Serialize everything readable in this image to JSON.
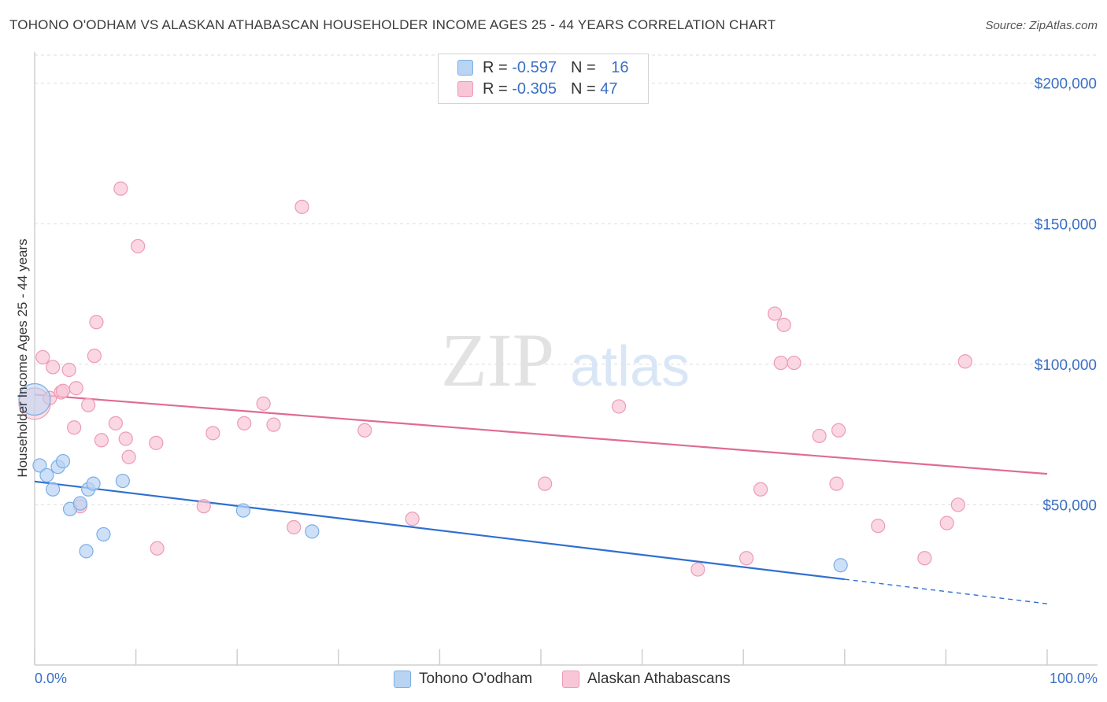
{
  "title": "TOHONO O'ODHAM VS ALASKAN ATHABASCAN HOUSEHOLDER INCOME AGES 25 - 44 YEARS CORRELATION CHART",
  "source": "Source: ZipAtlas.com",
  "watermark": {
    "zip": "ZIP",
    "atlas": "atlas"
  },
  "legend": {
    "rows": [
      {
        "r_label": "R = ",
        "r_value": "-0.597",
        "n_label": "N = ",
        "n_value": "16"
      },
      {
        "r_label": "R = ",
        "r_value": "-0.305",
        "n_label": "N = ",
        "n_value": "47"
      }
    ]
  },
  "colors": {
    "blue_fill": "#b9d3f3",
    "blue_stroke": "#7aaee6",
    "blue_line": "#2f6fd0",
    "pink_fill": "#f8c6d6",
    "pink_stroke": "#ec9bb6",
    "pink_line": "#e06b95",
    "axis_text": "#3a6fc4",
    "grid": "#dedede"
  },
  "chart_data": {
    "type": "scatter",
    "title": "TOHONO O'ODHAM VS ALASKAN ATHABASCAN HOUSEHOLDER INCOME AGES 25 - 44 YEARS CORRELATION CHART",
    "xlabel": "",
    "ylabel": "Householder Income Ages 25 - 44 years",
    "xlim": [
      0,
      100
    ],
    "ylim": [
      0,
      210000
    ],
    "x_tick_labels": [
      "0.0%",
      "100.0%"
    ],
    "y_ticks": [
      50000,
      100000,
      150000,
      200000
    ],
    "y_tick_labels": [
      "$50,000",
      "$100,000",
      "$150,000",
      "$200,000"
    ],
    "legend_position": "bottom",
    "series": [
      {
        "name": "Tohono O'odham",
        "color": "#b9d3f3",
        "points": [
          {
            "x": 0.0,
            "y": 87500,
            "big": true
          },
          {
            "x": 0.5,
            "y": 64000
          },
          {
            "x": 1.2,
            "y": 60500
          },
          {
            "x": 1.8,
            "y": 55500
          },
          {
            "x": 2.3,
            "y": 63500
          },
          {
            "x": 2.8,
            "y": 65500
          },
          {
            "x": 3.5,
            "y": 48500
          },
          {
            "x": 4.5,
            "y": 50500
          },
          {
            "x": 5.1,
            "y": 33500
          },
          {
            "x": 5.3,
            "y": 55500
          },
          {
            "x": 5.8,
            "y": 57500
          },
          {
            "x": 6.8,
            "y": 39500
          },
          {
            "x": 8.7,
            "y": 58500
          },
          {
            "x": 20.6,
            "y": 48000
          },
          {
            "x": 27.4,
            "y": 40500
          },
          {
            "x": 79.6,
            "y": 28500
          }
        ],
        "trend": {
          "x0": 0,
          "y0": 58300,
          "x1": 80,
          "y1": 23500,
          "dash_to_x": 100,
          "dash_to_y": 14800
        }
      },
      {
        "name": "Alaskan Athabascans",
        "color": "#f8c6d6",
        "points": [
          {
            "x": 0.0,
            "y": 86000,
            "big": true
          },
          {
            "x": 0.8,
            "y": 102500
          },
          {
            "x": 1.5,
            "y": 88000
          },
          {
            "x": 1.8,
            "y": 99000
          },
          {
            "x": 2.6,
            "y": 90000
          },
          {
            "x": 2.8,
            "y": 90500
          },
          {
            "x": 3.4,
            "y": 98000
          },
          {
            "x": 3.9,
            "y": 77500
          },
          {
            "x": 4.1,
            "y": 91500
          },
          {
            "x": 4.5,
            "y": 49500
          },
          {
            "x": 5.3,
            "y": 85500
          },
          {
            "x": 5.9,
            "y": 103000
          },
          {
            "x": 6.1,
            "y": 115000
          },
          {
            "x": 6.6,
            "y": 73000
          },
          {
            "x": 8.0,
            "y": 79000
          },
          {
            "x": 8.5,
            "y": 162500
          },
          {
            "x": 9.0,
            "y": 73500
          },
          {
            "x": 9.3,
            "y": 67000
          },
          {
            "x": 10.2,
            "y": 142000
          },
          {
            "x": 12.0,
            "y": 72000
          },
          {
            "x": 12.1,
            "y": 34500
          },
          {
            "x": 16.7,
            "y": 49500
          },
          {
            "x": 17.6,
            "y": 75500
          },
          {
            "x": 20.7,
            "y": 79000
          },
          {
            "x": 22.6,
            "y": 86000
          },
          {
            "x": 23.6,
            "y": 78500
          },
          {
            "x": 25.6,
            "y": 42000
          },
          {
            "x": 26.4,
            "y": 156000
          },
          {
            "x": 32.6,
            "y": 76500
          },
          {
            "x": 37.3,
            "y": 45000
          },
          {
            "x": 50.4,
            "y": 57500
          },
          {
            "x": 57.7,
            "y": 85000
          },
          {
            "x": 65.5,
            "y": 27000
          },
          {
            "x": 70.3,
            "y": 31000
          },
          {
            "x": 71.7,
            "y": 55500
          },
          {
            "x": 73.1,
            "y": 118000
          },
          {
            "x": 73.7,
            "y": 100500
          },
          {
            "x": 74.0,
            "y": 114000
          },
          {
            "x": 75.0,
            "y": 100500
          },
          {
            "x": 77.5,
            "y": 74500
          },
          {
            "x": 79.2,
            "y": 57500
          },
          {
            "x": 79.4,
            "y": 76500
          },
          {
            "x": 83.3,
            "y": 42500
          },
          {
            "x": 87.9,
            "y": 31000
          },
          {
            "x": 90.1,
            "y": 43500
          },
          {
            "x": 91.2,
            "y": 50000
          },
          {
            "x": 91.9,
            "y": 101000
          }
        ],
        "trend": {
          "x0": 0,
          "y0": 89200,
          "x1": 100,
          "y1": 61000
        }
      }
    ]
  }
}
